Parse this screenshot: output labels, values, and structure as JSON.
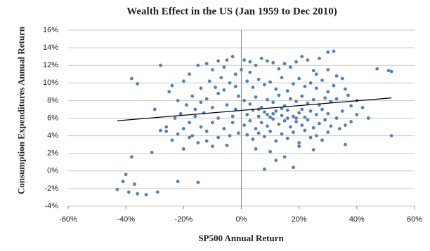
{
  "chart_data": {
    "type": "scatter",
    "title": "Wealth Effect in the US (Jan 1959 to Dec 2010)",
    "x_label": "SP500 Annual Return",
    "y_label": "Consumption Expenditures Annual Return",
    "color": "#4f81bd",
    "grid": true,
    "xlim": [
      -60,
      60
    ],
    "ylim": [
      -4,
      16
    ],
    "xticks": [
      {
        "value": -60,
        "label": "-60%"
      },
      {
        "value": -40,
        "label": "-40%"
      },
      {
        "value": -20,
        "label": "-20%"
      },
      {
        "value": 0,
        "label": "0%"
      },
      {
        "value": 20,
        "label": "20%"
      },
      {
        "value": 40,
        "label": "40%"
      },
      {
        "value": 60,
        "label": "60%"
      }
    ],
    "yticks": [
      {
        "value": -4,
        "label": "-4%"
      },
      {
        "value": -2,
        "label": "-2%"
      },
      {
        "value": 0,
        "label": "0%"
      },
      {
        "value": 2,
        "label": "2%"
      },
      {
        "value": 4,
        "label": "4%"
      },
      {
        "value": 6,
        "label": "6%"
      },
      {
        "value": 8,
        "label": "8%"
      },
      {
        "value": 10,
        "label": "10%"
      },
      {
        "value": 12,
        "label": "12%"
      },
      {
        "value": 14,
        "label": "14%"
      },
      {
        "value": 16,
        "label": "16%"
      }
    ],
    "trendline": {
      "color": "#000000",
      "x": [
        -43,
        52
      ],
      "y": [
        5.7,
        8.3
      ]
    },
    "x": [
      -43,
      -41,
      -40,
      -39,
      -37,
      -36,
      -38,
      -33,
      -29,
      -22,
      -15,
      -38,
      -36,
      -28,
      -30,
      -28,
      -26,
      -31,
      -20,
      -24,
      8,
      18,
      30,
      32,
      47,
      52,
      51,
      52,
      44,
      40,
      42,
      38,
      36,
      36,
      35,
      -25,
      -24,
      -20,
      -18,
      -15,
      -12,
      -10,
      -8,
      -5,
      -3,
      -22,
      -19,
      -17,
      -14,
      -12,
      -10,
      -8,
      -6,
      -4,
      -2,
      -23,
      -21,
      -18,
      -16,
      -14,
      -12,
      -10,
      -8,
      -6,
      -4,
      -20,
      -18,
      -15,
      -12,
      -10,
      -8,
      -5,
      -3,
      -2,
      -1,
      -17,
      -13,
      -9,
      -7,
      -5,
      -3,
      -1,
      -11,
      -14,
      -26,
      -22,
      -16,
      -6,
      -2,
      1,
      3,
      5,
      7,
      9,
      11,
      13,
      15,
      17,
      19,
      21,
      23,
      25,
      27,
      2,
      4,
      6,
      8,
      10,
      12,
      14,
      16,
      18,
      20,
      22,
      24,
      26,
      28,
      30,
      32,
      1,
      3,
      5,
      7,
      9,
      11,
      13,
      15,
      17,
      19,
      21,
      23,
      25,
      27,
      29,
      31,
      33,
      2,
      4,
      6,
      8,
      10,
      12,
      14,
      16,
      18,
      20,
      22,
      24,
      26,
      28,
      30,
      1,
      3,
      5,
      7,
      9,
      11,
      13,
      15,
      17,
      19,
      21,
      23,
      25,
      27,
      29,
      31,
      33,
      2,
      4,
      6,
      8,
      10,
      12,
      14,
      16,
      18,
      20,
      22,
      24,
      26,
      28,
      30,
      5,
      10,
      15,
      20,
      25,
      12,
      36,
      38,
      40,
      34,
      35,
      37,
      33,
      30,
      26,
      3,
      0,
      6,
      11,
      16,
      21,
      9,
      14,
      19
    ],
    "y": [
      -2.1,
      -1.2,
      -0.4,
      -2.4,
      -1.5,
      -2.6,
      1.6,
      -2.7,
      -2.4,
      -1.2,
      -1.3,
      10.5,
      9.9,
      12,
      7,
      4.6,
      4.5,
      2.1,
      2.5,
      3.5,
      0.2,
      0.4,
      13.5,
      13.6,
      11.6,
      11.3,
      11.4,
      4,
      6,
      8,
      7.2,
      5.6,
      3,
      9.3,
      10.5,
      9,
      9.7,
      10.2,
      11,
      12,
      12.2,
      11.5,
      12.5,
      12.6,
      13,
      8,
      7.5,
      8.5,
      7.8,
      8.2,
      7.2,
      8.8,
      9.2,
      10,
      11,
      6,
      6.5,
      5.5,
      6.2,
      5,
      4.5,
      5.5,
      6,
      4.8,
      4,
      4.8,
      3.8,
      3.2,
      3.4,
      2.8,
      3.8,
      2.9,
      5.5,
      7,
      8.5,
      4,
      6.6,
      9.5,
      10.6,
      7.5,
      6.2,
      4.3,
      10.2,
      9.4,
      5,
      4.2,
      7,
      11.8,
      9.6,
      12.6,
      11.2,
      12,
      12.8,
      12.5,
      12.3,
      11.6,
      12.2,
      11.8,
      12.4,
      13,
      12.6,
      11.4,
      12.8,
      10.2,
      9.5,
      10.4,
      9.8,
      10.1,
      9.3,
      10.6,
      9.1,
      9.9,
      10.5,
      9.6,
      10,
      9.4,
      10.3,
      9,
      9.7,
      8,
      7.6,
      8.4,
      7.2,
      8.1,
      7.8,
      8.6,
      7.4,
      8.2,
      7.9,
      8.5,
      7.7,
      8.1,
      7.5,
      8.3,
      7.9,
      8.2,
      6.4,
      6.9,
      6.2,
      6.7,
      6.1,
      6.8,
      6.3,
      6.9,
      6.2,
      6.6,
      6.1,
      6.8,
      6.4,
      7,
      6.5,
      5.2,
      5.7,
      4.8,
      5.5,
      5.1,
      5.9,
      5.3,
      5.7,
      5,
      5.6,
      5.2,
      5.8,
      4.9,
      5.4,
      5.8,
      5.1,
      6,
      4.1,
      3.6,
      4.3,
      3.9,
      4.5,
      3.4,
      4.2,
      3.7,
      4.4,
      3.2,
      4.6,
      3.8,
      4,
      3.5,
      4.4,
      2.5,
      2.2,
      1.6,
      2.8,
      2.4,
      1.2,
      5.2,
      7.4,
      6.4,
      4.8,
      6.8,
      8.6,
      10.8,
      11.5,
      11,
      12.4,
      11.5,
      7,
      6.5,
      6,
      7,
      6.4,
      7.1,
      6
    ]
  }
}
